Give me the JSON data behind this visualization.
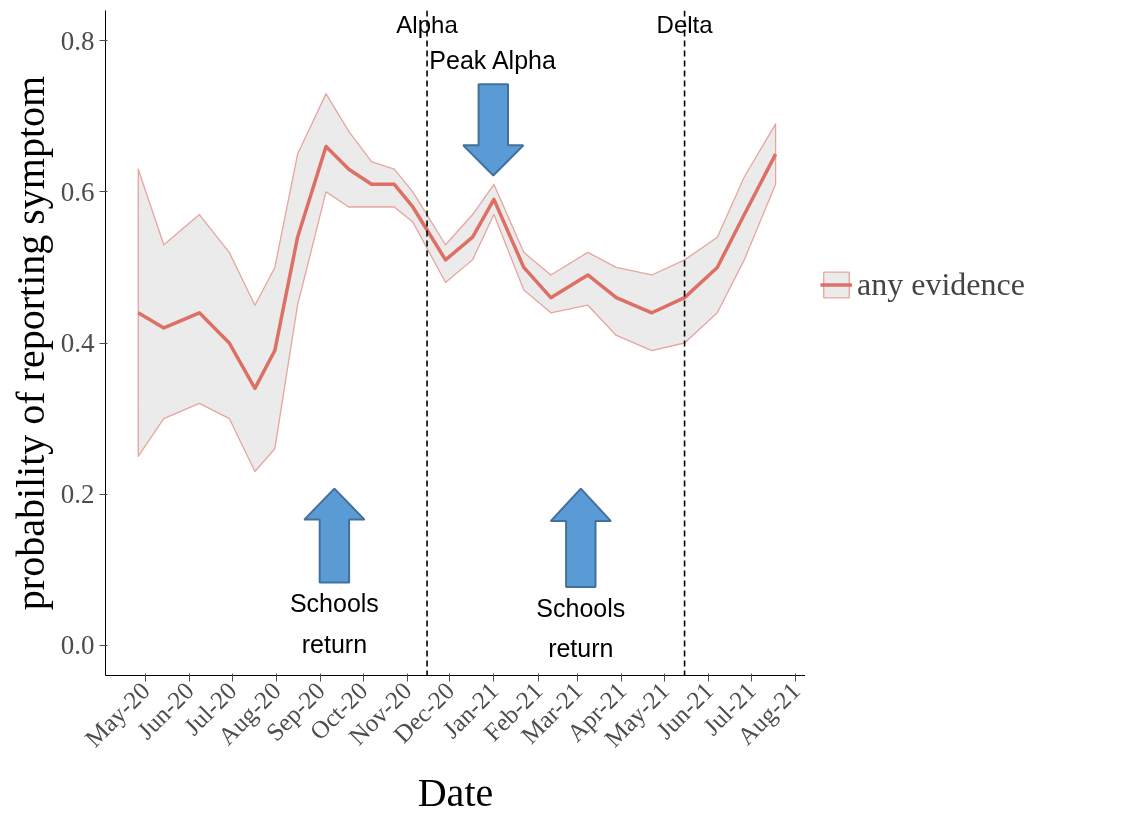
{
  "chart_data": {
    "type": "line",
    "xlabel": "Date",
    "ylabel": "probability of reporting symptom",
    "x": [
      "2020-04-26",
      "2020-05-14",
      "2020-06-08",
      "2020-06-29",
      "2020-07-17",
      "2020-07-31",
      "2020-08-16",
      "2020-09-05",
      "2020-09-21",
      "2020-10-07",
      "2020-10-23",
      "2020-11-05",
      "2020-11-28",
      "2020-12-17",
      "2021-01-01",
      "2021-01-22",
      "2021-02-10",
      "2021-03-08",
      "2021-03-28",
      "2021-04-22",
      "2021-05-15",
      "2021-06-07",
      "2021-06-26",
      "2021-07-18"
    ],
    "series": [
      {
        "name": "any evidence",
        "color": "#de6f64",
        "values": [
          0.44,
          0.42,
          0.44,
          0.4,
          0.34,
          0.39,
          0.54,
          0.66,
          0.63,
          0.61,
          0.61,
          0.58,
          0.51,
          0.54,
          0.59,
          0.5,
          0.46,
          0.49,
          0.46,
          0.44,
          0.46,
          0.5,
          0.57,
          0.65
        ],
        "upper": [
          0.63,
          0.53,
          0.57,
          0.52,
          0.45,
          0.5,
          0.65,
          0.73,
          0.68,
          0.64,
          0.63,
          0.6,
          0.53,
          0.57,
          0.61,
          0.52,
          0.49,
          0.52,
          0.5,
          0.49,
          0.51,
          0.54,
          0.62,
          0.69
        ],
        "lower": [
          0.25,
          0.3,
          0.32,
          0.3,
          0.23,
          0.26,
          0.45,
          0.6,
          0.58,
          0.58,
          0.58,
          0.56,
          0.48,
          0.51,
          0.57,
          0.47,
          0.44,
          0.45,
          0.41,
          0.39,
          0.4,
          0.44,
          0.51,
          0.61
        ]
      }
    ],
    "xlim": [
      "2020-04-03",
      "2021-08-08"
    ],
    "xticks": [
      {
        "value": "2020-05-01",
        "label": "May-20"
      },
      {
        "value": "2020-06-01",
        "label": "Jun-20"
      },
      {
        "value": "2020-07-01",
        "label": "Jul-20"
      },
      {
        "value": "2020-08-01",
        "label": "Aug-20"
      },
      {
        "value": "2020-09-01",
        "label": "Sep-20"
      },
      {
        "value": "2020-10-01",
        "label": "Oct-20"
      },
      {
        "value": "2020-11-01",
        "label": "Nov-20"
      },
      {
        "value": "2020-12-01",
        "label": "Dec-20"
      },
      {
        "value": "2021-01-01",
        "label": "Jan-21"
      },
      {
        "value": "2021-02-01",
        "label": "Feb-21"
      },
      {
        "value": "2021-03-01",
        "label": "Mar-21"
      },
      {
        "value": "2021-04-01",
        "label": "Apr-21"
      },
      {
        "value": "2021-05-01",
        "label": "May-21"
      },
      {
        "value": "2021-06-01",
        "label": "Jun-21"
      },
      {
        "value": "2021-07-01",
        "label": "Jul-21"
      },
      {
        "value": "2021-08-01",
        "label": "Aug-21"
      }
    ],
    "ylim": [
      -0.04,
      0.84
    ],
    "yticks": [
      {
        "value": 0,
        "label": "0.0"
      },
      0.2,
      0.4,
      0.6,
      0.8
    ],
    "ref_lines": [
      {
        "axis": "x",
        "value": "2020-11-15",
        "label": "Alpha",
        "color": "#000000",
        "line_style": "dashed"
      },
      {
        "axis": "x",
        "value": "2021-05-15",
        "label": "Delta",
        "color": "#000000",
        "line_style": "dashed"
      }
    ],
    "annotations": [
      "Peak Alpha",
      "Schools\nreturn",
      "Schools\nreturn"
    ],
    "grid": false,
    "legend": "right"
  }
}
